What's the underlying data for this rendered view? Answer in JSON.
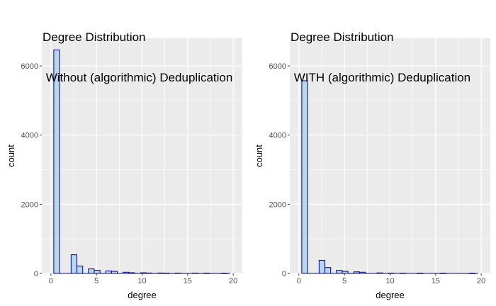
{
  "chart_data": [
    {
      "type": "bar",
      "title_line1": "Degree Distribution",
      "title_line2": " Without (algorithmic) Deduplication",
      "xlabel": "degree",
      "ylabel": "count",
      "xlim": [
        -1,
        21
      ],
      "ylim": [
        0,
        6800
      ],
      "xticks": [
        0,
        5,
        10,
        15,
        20
      ],
      "yticks": [
        0,
        2000,
        4000,
        6000
      ],
      "bin_width": 0.6333,
      "grid": true,
      "bins": [
        {
          "x": 0.63,
          "count": 6460
        },
        {
          "x": 2.53,
          "count": 540
        },
        {
          "x": 3.17,
          "count": 210
        },
        {
          "x": 4.43,
          "count": 130
        },
        {
          "x": 5.07,
          "count": 90
        },
        {
          "x": 6.33,
          "count": 70
        },
        {
          "x": 6.97,
          "count": 60
        },
        {
          "x": 8.23,
          "count": 35
        },
        {
          "x": 8.87,
          "count": 20
        },
        {
          "x": 10.13,
          "count": 18
        },
        {
          "x": 10.77,
          "count": 12
        },
        {
          "x": 12.03,
          "count": 12
        },
        {
          "x": 12.67,
          "count": 8
        },
        {
          "x": 13.93,
          "count": 10
        },
        {
          "x": 15.83,
          "count": 10
        },
        {
          "x": 17.1,
          "count": 8
        },
        {
          "x": 19.0,
          "count": 4
        }
      ]
    },
    {
      "type": "bar",
      "title_line1": "Degree Distribution",
      "title_line2": " WITH (algorithmic) Deduplication",
      "xlabel": "degree",
      "ylabel": "count",
      "xlim": [
        -1,
        21
      ],
      "ylim": [
        0,
        6800
      ],
      "xticks": [
        0,
        5,
        10,
        15,
        20
      ],
      "yticks": [
        0,
        2000,
        4000,
        6000
      ],
      "bin_width": 0.6333,
      "grid": true,
      "bins": [
        {
          "x": 0.63,
          "count": 5570
        },
        {
          "x": 2.53,
          "count": 380
        },
        {
          "x": 3.17,
          "count": 170
        },
        {
          "x": 4.43,
          "count": 90
        },
        {
          "x": 5.07,
          "count": 60
        },
        {
          "x": 6.33,
          "count": 45
        },
        {
          "x": 6.97,
          "count": 35
        },
        {
          "x": 8.87,
          "count": 15
        },
        {
          "x": 10.13,
          "count": 10
        },
        {
          "x": 11.4,
          "count": 8
        },
        {
          "x": 13.3,
          "count": 6
        },
        {
          "x": 15.83,
          "count": 6
        },
        {
          "x": 19.0,
          "count": 3
        }
      ]
    }
  ],
  "colors": {
    "panel_bg": "#ebebeb",
    "grid": "#ffffff",
    "bar_fill": "#b9d9ea",
    "bar_stroke": "#00008b",
    "tick": "#333333"
  }
}
